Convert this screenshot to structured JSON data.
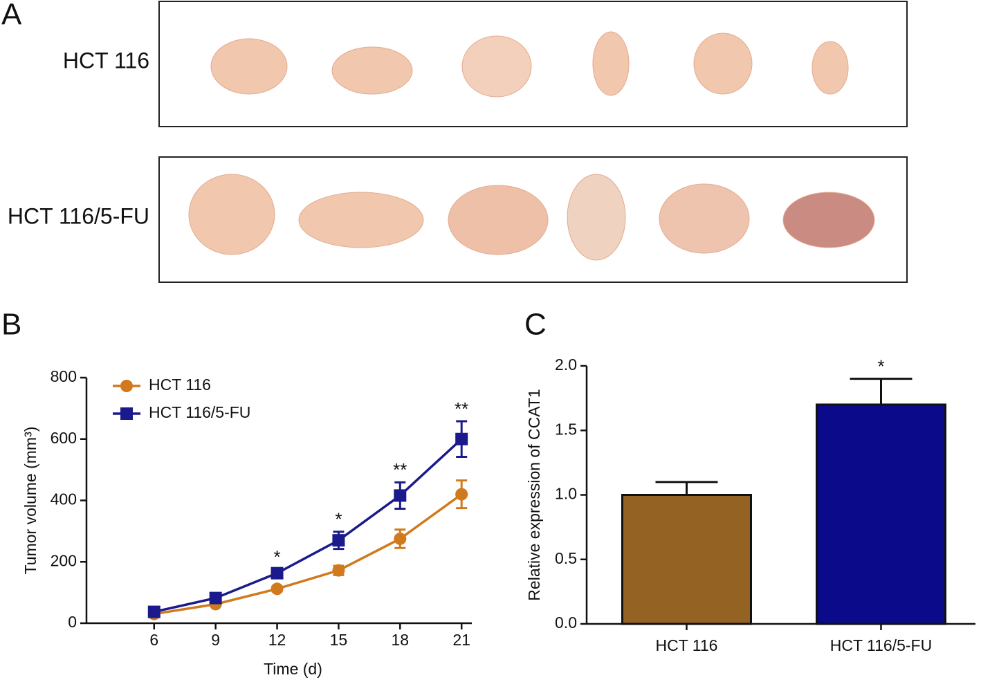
{
  "panel_labels": [
    "A",
    "B",
    "C"
  ],
  "photo_panel": {
    "rows": [
      "HCT 116",
      "HCT 116/5-FU"
    ]
  },
  "chart_data": [
    {
      "type": "line",
      "x": [
        6,
        9,
        12,
        15,
        18,
        21
      ],
      "xlabel": "Time (d)",
      "ylabel": "Tumor volume (mm³)",
      "xlim": [
        2.7,
        21.5
      ],
      "xticks": [
        6,
        9,
        12,
        15,
        18,
        21
      ],
      "ylim": [
        0,
        800
      ],
      "yticks": [
        0,
        200,
        400,
        600,
        800
      ],
      "series": [
        {
          "name": "HCT 116",
          "color": "#d07a1d",
          "marker": "circle",
          "values": [
            30,
            62,
            112,
            172,
            275,
            420
          ],
          "errors": [
            4,
            6,
            8,
            15,
            30,
            45
          ]
        },
        {
          "name": "HCT 116/5-FU",
          "color": "#1a1a8c",
          "marker": "square",
          "values": [
            37,
            82,
            163,
            270,
            416,
            600
          ],
          "errors": [
            5,
            8,
            12,
            28,
            43,
            58
          ]
        }
      ],
      "annotations": [
        {
          "x": 12,
          "text": "*"
        },
        {
          "x": 15,
          "text": "*"
        },
        {
          "x": 18,
          "text": "**"
        },
        {
          "x": 21,
          "text": "**"
        }
      ]
    },
    {
      "type": "bar",
      "ylabel": "Relative expression of CCAT1",
      "categories": [
        "HCT 116",
        "HCT 116/5-FU"
      ],
      "values": [
        1.0,
        1.7
      ],
      "errors": [
        0.1,
        0.2
      ],
      "colors": [
        "#946323",
        "#0a0a8a"
      ],
      "ylim": [
        0,
        2
      ],
      "yticks": [
        {
          "value": 0,
          "label": "0.0"
        },
        {
          "value": 0.5,
          "label": "0.5"
        },
        {
          "value": 1,
          "label": "1.0"
        },
        {
          "value": 1.5,
          "label": "1.5"
        },
        {
          "value": 2,
          "label": "2.0"
        }
      ],
      "annotations": [
        {
          "category": 1,
          "text": "*"
        }
      ]
    }
  ]
}
